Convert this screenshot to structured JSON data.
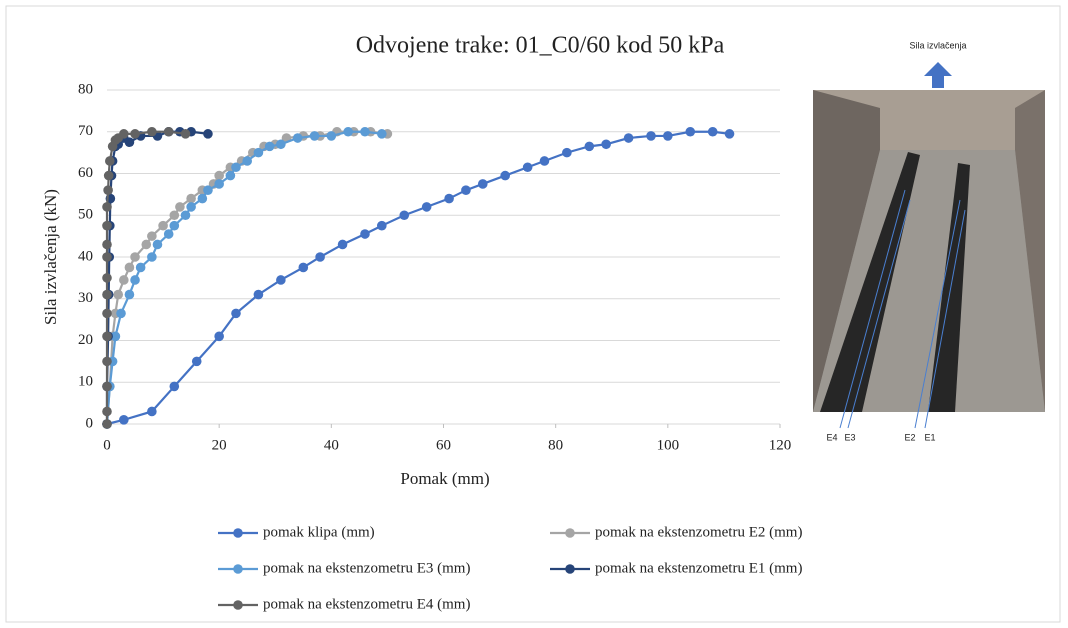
{
  "chart_data": {
    "type": "line",
    "title": "Odvojene trake: 01_C0/60 kod 50 kPa",
    "x_label": "Pomak (mm)",
    "y_label": "Sila izvlačenja (kN)",
    "xlim": [
      0,
      120
    ],
    "xticks": [
      0,
      20,
      40,
      60,
      80,
      100,
      120
    ],
    "ylim": [
      0,
      80
    ],
    "yticks": [
      0,
      10,
      20,
      30,
      40,
      50,
      60,
      70,
      80
    ],
    "grid": true,
    "photo_labels": [
      "Sila izvlačenja",
      "E4",
      "E3",
      "E2",
      "E1"
    ],
    "series": [
      {
        "name": "pomak klipa (mm)",
        "color": "#4472c4",
        "x": [
          0,
          3,
          8,
          12,
          16,
          20,
          23,
          27,
          31,
          35,
          38,
          42,
          46,
          49,
          53,
          57,
          61,
          64,
          67,
          71,
          75,
          78,
          82,
          86,
          89,
          93,
          97,
          100,
          104,
          108,
          111
        ],
        "y": [
          0,
          1,
          3,
          9,
          15,
          21,
          26.5,
          31,
          34.5,
          37.5,
          40,
          43,
          45.5,
          47.5,
          50,
          52,
          54,
          56,
          57.5,
          59.5,
          61.5,
          63,
          65,
          66.5,
          67,
          68.5,
          69,
          69,
          70,
          70,
          69.5
        ]
      },
      {
        "name": "pomak na ekstenzometru E2 (mm)",
        "color": "#a5a5a5",
        "x": [
          0,
          0.5,
          1,
          1.5,
          2,
          3,
          4,
          5,
          7,
          8,
          10,
          12,
          13,
          15,
          17,
          19,
          20,
          22,
          24,
          26,
          28,
          30,
          32,
          35,
          38,
          41,
          44,
          47,
          50
        ],
        "y": [
          0,
          9,
          21,
          26.5,
          31,
          34.5,
          37.5,
          40,
          43,
          45,
          47.5,
          50,
          52,
          54,
          56,
          57.5,
          59.5,
          61.5,
          63,
          65,
          66.5,
          67,
          68.5,
          69,
          69,
          70,
          70,
          70,
          69.5
        ]
      },
      {
        "name": "pomak na ekstenzometru E3 (mm)",
        "color": "#5b9bd5",
        "x": [
          0,
          0.5,
          1,
          1.5,
          2.5,
          4,
          5,
          6,
          8,
          9,
          11,
          12,
          14,
          15,
          17,
          18,
          20,
          22,
          23,
          25,
          27,
          29,
          31,
          34,
          37,
          40,
          43,
          46,
          49
        ],
        "y": [
          0,
          9,
          15,
          21,
          26.5,
          31,
          34.5,
          37.5,
          40,
          43,
          45.5,
          47.5,
          50,
          52,
          54,
          56,
          57.5,
          59.5,
          61.5,
          63,
          65,
          66.5,
          67,
          68.5,
          69,
          69,
          70,
          70,
          69.5
        ]
      },
      {
        "name": "pomak na ekstenzometru E1 (mm)",
        "color": "#264478",
        "x": [
          0,
          0,
          0.2,
          0.3,
          0.4,
          0.5,
          0.6,
          0.8,
          1,
          1.5,
          2,
          3,
          4,
          6,
          9,
          11,
          13,
          15,
          18
        ],
        "y": [
          0,
          9,
          21,
          31,
          40,
          47.5,
          54,
          59.5,
          63,
          66.5,
          67,
          68.5,
          67.5,
          69,
          69,
          70,
          70,
          70,
          69.5
        ]
      },
      {
        "name": "pomak na ekstenzometru E4 (mm)",
        "color": "#636363",
        "x": [
          0,
          0,
          0,
          0,
          0,
          0,
          0,
          0,
          0,
          0,
          0,
          0,
          0.2,
          0.3,
          0.5,
          1,
          1.5,
          2,
          3,
          5,
          8,
          11,
          14
        ],
        "y": [
          0,
          3,
          9,
          15,
          21,
          26.5,
          31,
          35,
          40,
          43,
          47.5,
          52,
          56,
          59.5,
          63,
          66.5,
          68,
          68.5,
          69.5,
          69.5,
          70,
          70,
          69.5
        ]
      }
    ]
  }
}
